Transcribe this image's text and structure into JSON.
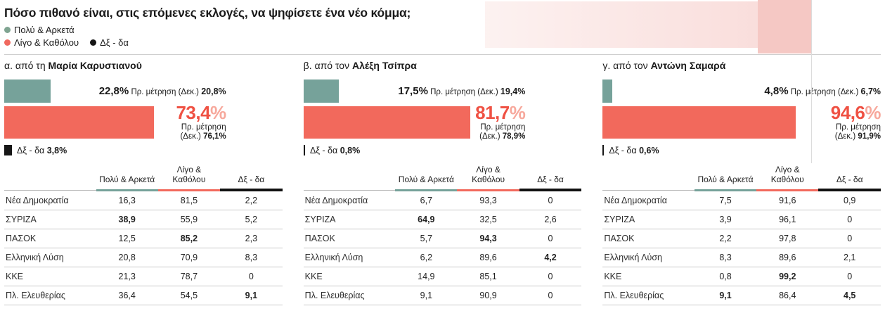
{
  "page": {
    "title": "Πόσο πιθανό είναι, στις επόμενες εκλογές, να ψηφίσετε ένα νέο κόμμα;",
    "legend": [
      {
        "label": "Πολύ & Αρκετά",
        "color": "#7fa491"
      },
      {
        "label": "Λίγο & Καθόλου",
        "color": "#f0695f"
      },
      {
        "label": "Δξ - δα",
        "color": "#161616"
      }
    ],
    "colors": {
      "positive_bar": "#76a29a",
      "negative_bar": "#f2695c",
      "negative_value_text": "#ef5143",
      "percent_sign": "#f7a89c",
      "dk_bar": "#161616",
      "header_rule_gray": "#b8b8b8",
      "header_rule_black": "#111111"
    }
  },
  "chart_data": [
    {
      "id": "a",
      "type": "bar",
      "axis_max": 100,
      "label_prefix": "α. από τη",
      "subject": "Μαρία Καρυστιανού",
      "bars": {
        "positive": {
          "label": "Πολύ & Αρκετά",
          "value": 22.8,
          "display": "22,8%",
          "meas": "Πρ. μέτρηση (Δεκ.)",
          "prev": "20,8%",
          "prev_value": 20.8
        },
        "negative": {
          "label": "Λίγο & Καθόλου",
          "value": 73.4,
          "display": "73,4",
          "pct": "%",
          "meas1": "Πρ. μέτρηση",
          "meas2": "(Δεκ.)",
          "prev": "76,1%",
          "prev_value": 76.1
        },
        "dk": {
          "label": "Δξ - δα",
          "value": 3.8,
          "display": "3,8%"
        }
      },
      "table": {
        "headers": [
          "Πολύ & Αρκετά",
          "Λίγο & Καθόλου",
          "Δξ - δα"
        ],
        "rows": [
          {
            "party": "Νέα Δημοκρατία",
            "values": [
              "16,3",
              "81,5",
              "2,2"
            ],
            "bold": [
              false,
              false,
              false
            ]
          },
          {
            "party": "ΣΥΡΙΖΑ",
            "values": [
              "38,9",
              "55,9",
              "5,2"
            ],
            "bold": [
              true,
              false,
              false
            ]
          },
          {
            "party": "ΠΑΣΟΚ",
            "values": [
              "12,5",
              "85,2",
              "2,3"
            ],
            "bold": [
              false,
              true,
              false
            ]
          },
          {
            "party": "Ελληνική Λύση",
            "values": [
              "20,8",
              "70,9",
              "8,3"
            ],
            "bold": [
              false,
              false,
              false
            ]
          },
          {
            "party": "ΚΚΕ",
            "values": [
              "21,3",
              "78,7",
              "0"
            ],
            "bold": [
              false,
              false,
              false
            ]
          },
          {
            "party": "Πλ. Ελευθερίας",
            "values": [
              "36,4",
              "54,5",
              "9,1"
            ],
            "bold": [
              false,
              false,
              true
            ]
          }
        ]
      }
    },
    {
      "id": "b",
      "type": "bar",
      "axis_max": 100,
      "label_prefix": "β. από τον",
      "subject": "Αλέξη Τσίπρα",
      "bars": {
        "positive": {
          "label": "Πολύ & Αρκετά",
          "value": 17.5,
          "display": "17,5%",
          "meas": "Πρ. μέτρηση (Δεκ.)",
          "prev": "19,4%",
          "prev_value": 19.4
        },
        "negative": {
          "label": "Λίγο & Καθόλου",
          "value": 81.7,
          "display": "81,7",
          "pct": "%",
          "meas1": "Πρ. μέτρηση",
          "meas2": "(Δεκ.)",
          "prev": "78,9%",
          "prev_value": 78.9
        },
        "dk": {
          "label": "Δξ - δα",
          "value": 0.8,
          "display": "0,8%"
        }
      },
      "table": {
        "headers": [
          "Πολύ & Αρκετά",
          "Λίγο & Καθόλου",
          "Δξ - δα"
        ],
        "rows": [
          {
            "party": "Νέα Δημοκρατία",
            "values": [
              "6,7",
              "93,3",
              "0"
            ],
            "bold": [
              false,
              false,
              false
            ]
          },
          {
            "party": "ΣΥΡΙΖΑ",
            "values": [
              "64,9",
              "32,5",
              "2,6"
            ],
            "bold": [
              true,
              false,
              false
            ]
          },
          {
            "party": "ΠΑΣΟΚ",
            "values": [
              "5,7",
              "94,3",
              "0"
            ],
            "bold": [
              false,
              true,
              false
            ]
          },
          {
            "party": "Ελληνική Λύση",
            "values": [
              "6,2",
              "89,6",
              "4,2"
            ],
            "bold": [
              false,
              false,
              true
            ]
          },
          {
            "party": "ΚΚΕ",
            "values": [
              "14,9",
              "85,1",
              "0"
            ],
            "bold": [
              false,
              false,
              false
            ]
          },
          {
            "party": "Πλ. Ελευθερίας",
            "values": [
              "9,1",
              "90,9",
              "0"
            ],
            "bold": [
              false,
              false,
              false
            ]
          }
        ]
      }
    },
    {
      "id": "c",
      "type": "bar",
      "axis_max": 100,
      "label_prefix": "γ. από τον",
      "subject": "Αντώνη Σαμαρά",
      "bars": {
        "positive": {
          "label": "Πολύ & Αρκετά",
          "value": 4.8,
          "display": "4,8%",
          "meas": "Πρ. μέτρηση (Δεκ.)",
          "prev": "6,7%",
          "prev_value": 6.7
        },
        "negative": {
          "label": "Λίγο & Καθόλου",
          "value": 94.6,
          "display": "94,6",
          "pct": "%",
          "meas1": "Πρ. μέτρηση",
          "meas2": "(Δεκ.)",
          "prev": "91,9%",
          "prev_value": 91.9
        },
        "dk": {
          "label": "Δξ - δα",
          "value": 0.6,
          "display": "0,6%"
        }
      },
      "table": {
        "headers": [
          "Πολύ & Αρκετά",
          "Λίγο & Καθόλου",
          "Δξ - δα"
        ],
        "rows": [
          {
            "party": "Νέα Δημοκρατία",
            "values": [
              "7,5",
              "91,6",
              "0,9"
            ],
            "bold": [
              false,
              false,
              false
            ]
          },
          {
            "party": "ΣΥΡΙΖΑ",
            "values": [
              "3,9",
              "96,1",
              "0"
            ],
            "bold": [
              false,
              false,
              false
            ]
          },
          {
            "party": "ΠΑΣΟΚ",
            "values": [
              "2,2",
              "97,8",
              "0"
            ],
            "bold": [
              false,
              false,
              false
            ]
          },
          {
            "party": "Ελληνική Λύση",
            "values": [
              "8,3",
              "89,6",
              "2,1"
            ],
            "bold": [
              false,
              false,
              false
            ]
          },
          {
            "party": "ΚΚΕ",
            "values": [
              "0,8",
              "99,2",
              "0"
            ],
            "bold": [
              false,
              true,
              false
            ]
          },
          {
            "party": "Πλ. Ελευθερίας",
            "values": [
              "9,1",
              "86,4",
              "4,5"
            ],
            "bold": [
              true,
              false,
              true
            ]
          }
        ]
      }
    }
  ]
}
